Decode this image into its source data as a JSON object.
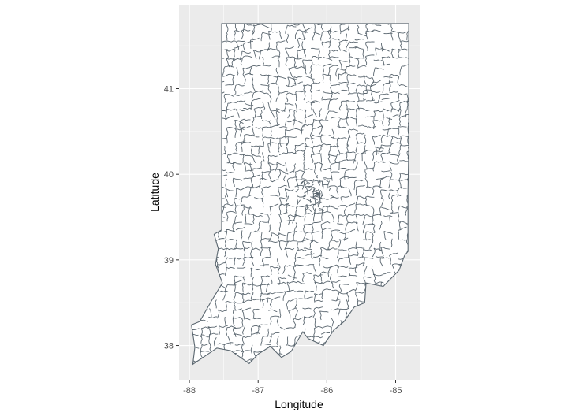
{
  "chart_data": {
    "type": "map",
    "region": "Indiana",
    "xlabel": "Longitude",
    "ylabel": "Latitude",
    "xlim": [
      -88.15,
      -84.65
    ],
    "ylim": [
      37.6,
      41.98
    ],
    "x_ticks": [
      -88,
      -87,
      -86,
      -85
    ],
    "x_tick_labels": [
      "-88",
      "-87",
      "-86",
      "-85"
    ],
    "y_ticks": [
      38,
      39,
      40,
      41
    ],
    "y_tick_labels": [
      "38",
      "39",
      "40",
      "41"
    ],
    "grid": true,
    "legend": "none",
    "state_outline_lonlat": [
      [
        -87.53,
        41.76
      ],
      [
        -87.2,
        41.76
      ],
      [
        -86.82,
        41.76
      ],
      [
        -86.3,
        41.76
      ],
      [
        -85.8,
        41.76
      ],
      [
        -85.3,
        41.76
      ],
      [
        -84.81,
        41.76
      ],
      [
        -84.81,
        41.3
      ],
      [
        -84.81,
        40.8
      ],
      [
        -84.81,
        40.3
      ],
      [
        -84.82,
        39.8
      ],
      [
        -84.82,
        39.3
      ],
      [
        -84.82,
        39.1
      ],
      [
        -84.87,
        39.05
      ],
      [
        -84.95,
        38.88
      ],
      [
        -85.18,
        38.69
      ],
      [
        -85.43,
        38.73
      ],
      [
        -85.45,
        38.5
      ],
      [
        -85.6,
        38.45
      ],
      [
        -85.75,
        38.28
      ],
      [
        -85.9,
        38.18
      ],
      [
        -86.05,
        38.0
      ],
      [
        -86.27,
        38.08
      ],
      [
        -86.35,
        38.16
      ],
      [
        -86.52,
        37.93
      ],
      [
        -86.66,
        37.86
      ],
      [
        -86.82,
        37.99
      ],
      [
        -87.0,
        37.9
      ],
      [
        -87.13,
        37.79
      ],
      [
        -87.4,
        37.94
      ],
      [
        -87.6,
        37.97
      ],
      [
        -87.73,
        37.9
      ],
      [
        -87.95,
        37.78
      ],
      [
        -87.92,
        37.98
      ],
      [
        -87.97,
        38.24
      ],
      [
        -87.85,
        38.28
      ],
      [
        -87.68,
        38.52
      ],
      [
        -87.52,
        38.73
      ],
      [
        -87.62,
        38.95
      ],
      [
        -87.58,
        39.13
      ],
      [
        -87.64,
        39.3
      ],
      [
        -87.53,
        39.35
      ],
      [
        -87.53,
        39.9
      ],
      [
        -87.53,
        40.5
      ],
      [
        -87.53,
        41.0
      ],
      [
        -87.53,
        41.5
      ],
      [
        -87.53,
        41.76
      ]
    ],
    "fill_color": "#ffffff",
    "stroke_color": "#5b6770",
    "panel_color": "#ebebeb",
    "gridline_color": "#ffffff"
  },
  "colors": {
    "panel": "#ebebeb",
    "grid": "#ffffff",
    "boundary": "#5b6770",
    "tick": "#333333"
  }
}
